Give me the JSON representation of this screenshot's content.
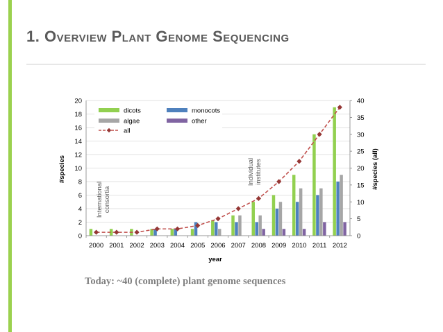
{
  "slide": {
    "title": "1. Overview Plant Genome Sequencing",
    "subtitle": "Today: ~40 (complete) plant genome sequences",
    "accent_color": "#9bd14f"
  },
  "chart_data": {
    "type": "bar",
    "xlabel": "year",
    "ylabel": "#species",
    "ylabel_right": "#species (all)",
    "ylim": [
      0,
      20
    ],
    "ylim_right": [
      0,
      40
    ],
    "yticks": [
      0,
      2,
      4,
      6,
      8,
      10,
      12,
      14,
      16,
      18,
      20
    ],
    "yticks_right": [
      0,
      5,
      10,
      15,
      20,
      25,
      30,
      35,
      40
    ],
    "categories": [
      "2000",
      "2001",
      "2002",
      "2003",
      "2004",
      "2005",
      "2006",
      "2007",
      "2008",
      "2009",
      "2010",
      "2011",
      "2012"
    ],
    "series": [
      {
        "name": "dicots",
        "type": "bar",
        "axis": "left",
        "color": "#92d050",
        "values": [
          1,
          1,
          1,
          1,
          1,
          1,
          2.3,
          3,
          5,
          6,
          9,
          15,
          19
        ]
      },
      {
        "name": "monocots",
        "type": "bar",
        "axis": "left",
        "color": "#4f81bd",
        "values": [
          0,
          0,
          0,
          1,
          1,
          2,
          2,
          2,
          2,
          4,
          5,
          6,
          8
        ]
      },
      {
        "name": "algae",
        "type": "bar",
        "axis": "left",
        "color": "#a6a6a6",
        "values": [
          0,
          0,
          0,
          0,
          0,
          0,
          1,
          3,
          3,
          5,
          7,
          7,
          9
        ]
      },
      {
        "name": "other",
        "type": "bar",
        "axis": "left",
        "color": "#8064a2",
        "values": [
          0,
          0,
          0,
          0,
          0,
          0,
          0,
          0,
          1,
          1,
          1,
          2,
          2
        ]
      },
      {
        "name": "all",
        "type": "line",
        "axis": "right",
        "color": "#c0504d",
        "marker_color": "#953735",
        "values": [
          1,
          1,
          1,
          2,
          2,
          3,
          5,
          8,
          11,
          16,
          22,
          30,
          38
        ]
      }
    ],
    "legend_position": "top-left",
    "annotations": [
      {
        "text": "International consortia",
        "lines": [
          "International",
          "consortia"
        ],
        "near": "2000-2001"
      },
      {
        "text": "Individual institutes",
        "lines": [
          "Individual",
          "institutes"
        ],
        "near": "2007-2008"
      }
    ]
  }
}
